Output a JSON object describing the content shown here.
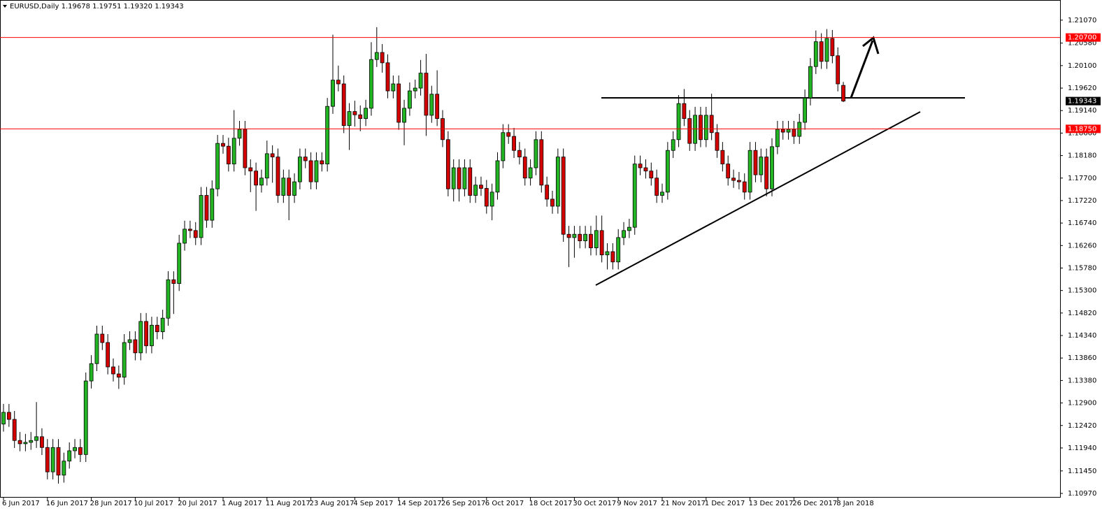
{
  "chart_data": {
    "type": "candlestick",
    "header": "EURUSD,Daily  1.19678 1.19751 1.19320 1.19343",
    "up_color": "#22b422",
    "down_color": "#d40000",
    "categories": [
      "6 Jun 2017",
      null,
      null,
      null,
      null,
      null,
      null,
      null,
      "16 Jun 2017",
      null,
      null,
      null,
      null,
      null,
      null,
      null,
      "28 Jun 2017",
      null,
      null,
      null,
      null,
      null,
      null,
      null,
      "10 Jul 2017",
      null,
      null,
      null,
      null,
      null,
      null,
      null,
      "20 Jul 2017",
      null,
      null,
      null,
      null,
      null,
      null,
      null,
      "1 Aug 2017",
      null,
      null,
      null,
      null,
      null,
      null,
      null,
      "11 Aug 2017",
      null,
      null,
      null,
      null,
      null,
      null,
      null,
      "23 Aug 2017",
      null,
      null,
      null,
      null,
      null,
      null,
      null,
      "4 Sep 2017",
      null,
      null,
      null,
      null,
      null,
      null,
      null,
      "14 Sep 2017",
      null,
      null,
      null,
      null,
      null,
      null,
      null,
      "26 Sep 2017",
      null,
      null,
      null,
      null,
      null,
      null,
      null,
      "6 Oct 2017",
      null,
      null,
      null,
      null,
      null,
      null,
      null,
      "18 Oct 2017",
      null,
      null,
      null,
      null,
      null,
      null,
      null,
      "30 Oct 2017",
      null,
      null,
      null,
      null,
      null,
      null,
      null,
      "9 Nov 2017",
      null,
      null,
      null,
      null,
      null,
      null,
      null,
      "21 Nov 2017",
      null,
      null,
      null,
      null,
      null,
      null,
      null,
      "1 Dec 2017",
      null,
      null,
      null,
      null,
      null,
      null,
      null,
      "13 Dec 2017",
      null,
      null,
      null,
      null,
      null,
      null,
      null,
      "26 Dec 2017",
      null,
      null,
      null,
      null,
      null,
      null,
      null,
      "8 Jan 2018",
      null
    ],
    "open": [
      1.1245,
      1.127,
      1.1255,
      1.121,
      1.1203,
      1.1206,
      1.121,
      1.1218,
      1.1195,
      1.1143,
      1.1195,
      1.1136,
      1.1166,
      1.1188,
      1.1195,
      1.118,
      1.1337,
      1.1374,
      1.1437,
      1.1419,
      1.1367,
      1.1352,
      1.1345,
      1.1419,
      1.1425,
      1.1397,
      1.1464,
      1.1412,
      1.1456,
      1.1442,
      1.1471,
      1.1553,
      1.1545,
      1.1631,
      1.1661,
      1.1658,
      1.1643,
      1.1733,
      1.168,
      1.1747,
      1.1844,
      1.1838,
      1.18,
      1.1855,
      1.1874,
      1.1792,
      1.1785,
      1.1755,
      1.177,
      1.1822,
      1.1815,
      1.1733,
      1.177,
      1.1733,
      1.1762,
      1.1815,
      1.1807,
      1.1762,
      1.1807,
      1.18,
      1.1923,
      1.1979,
      1.1971,
      1.1882,
      1.1912,
      1.1905,
      1.1897,
      1.1919,
      1.2023,
      1.2038,
      1.2016,
      1.1956,
      1.1971,
      1.1889,
      1.1919,
      1.1956,
      1.1962,
      1.1994,
      1.1904,
      1.1949,
      1.1897,
      1.1852,
      1.1747,
      1.1792,
      1.1747,
      1.1792,
      1.1733,
      1.1755,
      1.1748,
      1.171,
      1.174,
      1.1807,
      1.1867,
      1.1859,
      1.1829,
      1.1815,
      1.177,
      1.1792,
      1.1852,
      1.1755,
      1.1725,
      1.171,
      1.1815,
      1.165,
      1.1643,
      1.165,
      1.1636,
      1.165,
      1.1621,
      1.1658,
      1.1606,
      1.1613,
      1.1591,
      1.1643,
      1.1658,
      1.1665,
      1.18,
      1.1792,
      1.1785,
      1.177,
      1.1733,
      1.174,
      1.1829,
      1.1852,
      1.1929,
      1.1897,
      1.1844,
      1.1904,
      1.1852,
      1.1904,
      1.1867,
      1.1829,
      1.18,
      1.177,
      1.1765,
      1.1762,
      1.174,
      1.1829,
      1.1777,
      1.1815,
      1.1747,
      1.1837,
      1.1874,
      1.1868,
      1.1874,
      1.1859,
      1.1889,
      1.1941,
      1.2008,
      1.2061,
      1.2019,
      1.2068,
      1.2031,
      1.19678
    ],
    "high": [
      1.1288,
      1.1288,
      1.1273,
      1.1228,
      1.1224,
      1.1228,
      1.1292,
      1.1236,
      1.1213,
      1.1213,
      1.1213,
      1.1184,
      1.1206,
      1.1213,
      1.1213,
      1.1355,
      1.1392,
      1.1455,
      1.1455,
      1.1437,
      1.1385,
      1.137,
      1.1437,
      1.1443,
      1.1443,
      1.1482,
      1.1482,
      1.1474,
      1.1474,
      1.1489,
      1.1571,
      1.1571,
      1.1649,
      1.1679,
      1.1679,
      1.1676,
      1.1751,
      1.1751,
      1.1765,
      1.1862,
      1.1862,
      1.1856,
      1.1915,
      1.1892,
      1.1892,
      1.181,
      1.1803,
      1.1788,
      1.185,
      1.184,
      1.1833,
      1.1788,
      1.1788,
      1.178,
      1.1833,
      1.1833,
      1.1825,
      1.1825,
      1.1825,
      1.1941,
      1.2076,
      1.201,
      1.1989,
      1.193,
      1.1935,
      1.1925,
      1.1937,
      1.206,
      1.2092,
      1.2056,
      1.2034,
      1.1989,
      1.1989,
      1.1937,
      1.1974,
      1.198,
      1.2022,
      1.2035,
      1.1967,
      1.2,
      1.1915,
      1.187,
      1.181,
      1.181,
      1.181,
      1.181,
      1.1773,
      1.1773,
      1.1766,
      1.1758,
      1.1825,
      1.1885,
      1.1885,
      1.1877,
      1.1847,
      1.1833,
      1.181,
      1.187,
      1.187,
      1.1773,
      1.1743,
      1.1833,
      1.1833,
      1.1668,
      1.1668,
      1.1668,
      1.1668,
      1.1668,
      1.169,
      1.169,
      1.1631,
      1.1631,
      1.1661,
      1.1676,
      1.1683,
      1.1818,
      1.1818,
      1.181,
      1.1803,
      1.1788,
      1.1758,
      1.1847,
      1.187,
      1.1947,
      1.196,
      1.1915,
      1.1922,
      1.1922,
      1.1922,
      1.195,
      1.1885,
      1.1847,
      1.1818,
      1.1788,
      1.1783,
      1.178,
      1.1847,
      1.1847,
      1.1833,
      1.1833,
      1.1855,
      1.1892,
      1.1892,
      1.1892,
      1.1892,
      1.1907,
      1.1959,
      1.2026,
      1.2085,
      1.2079,
      1.2088,
      1.2086,
      1.2049,
      1.19751
    ],
    "low": [
      1.1229,
      1.1239,
      1.1194,
      1.1187,
      1.1187,
      1.119,
      1.1194,
      1.1179,
      1.1127,
      1.1127,
      1.1118,
      1.112,
      1.115,
      1.1172,
      1.1164,
      1.1164,
      1.1321,
      1.1358,
      1.1403,
      1.1351,
      1.1336,
      1.132,
      1.1329,
      1.1403,
      1.1381,
      1.1381,
      1.1396,
      1.1396,
      1.1426,
      1.1426,
      1.1455,
      1.148,
      1.1529,
      1.1615,
      1.1642,
      1.1627,
      1.1627,
      1.1664,
      1.1664,
      1.1731,
      1.1822,
      1.1784,
      1.1784,
      1.1839,
      1.1776,
      1.174,
      1.17,
      1.1739,
      1.1754,
      1.176,
      1.1717,
      1.1717,
      1.168,
      1.1717,
      1.1746,
      1.1791,
      1.1746,
      1.1746,
      1.1784,
      1.1784,
      1.1907,
      1.1955,
      1.1866,
      1.183,
      1.188,
      1.187,
      1.1881,
      1.1903,
      1.2007,
      1.1995,
      1.194,
      1.194,
      1.1873,
      1.184,
      1.1903,
      1.194,
      1.1946,
      1.186,
      1.1888,
      1.1881,
      1.1836,
      1.1731,
      1.172,
      1.172,
      1.1731,
      1.1717,
      1.1717,
      1.1732,
      1.1694,
      1.168,
      1.1724,
      1.1791,
      1.1843,
      1.1813,
      1.1799,
      1.1754,
      1.1754,
      1.1776,
      1.1739,
      1.1709,
      1.1694,
      1.1694,
      1.1634,
      1.158,
      1.16,
      1.162,
      1.162,
      1.1605,
      1.1605,
      1.159,
      1.1575,
      1.1575,
      1.1575,
      1.1627,
      1.1642,
      1.1649,
      1.1776,
      1.1769,
      1.1754,
      1.1717,
      1.1717,
      1.1724,
      1.1813,
      1.1836,
      1.1881,
      1.1828,
      1.1828,
      1.1836,
      1.1836,
      1.1851,
      1.1813,
      1.1784,
      1.1754,
      1.1749,
      1.1746,
      1.1724,
      1.1724,
      1.1761,
      1.1761,
      1.1731,
      1.1731,
      1.1821,
      1.1852,
      1.1852,
      1.1843,
      1.1843,
      1.1873,
      1.1925,
      1.1992,
      1.2003,
      1.2003,
      1.2015,
      1.1955,
      1.1932
    ],
    "close": [
      1.127,
      1.1255,
      1.121,
      1.1203,
      1.1206,
      1.121,
      1.1218,
      1.1195,
      1.1143,
      1.1195,
      1.1136,
      1.1166,
      1.1188,
      1.1195,
      1.118,
      1.1337,
      1.1374,
      1.1437,
      1.1419,
      1.1367,
      1.1352,
      1.1345,
      1.1419,
      1.1425,
      1.1397,
      1.1464,
      1.1412,
      1.1456,
      1.1442,
      1.1471,
      1.1553,
      1.1545,
      1.1631,
      1.1661,
      1.1658,
      1.1643,
      1.1733,
      1.168,
      1.1747,
      1.1844,
      1.1838,
      1.18,
      1.1855,
      1.1874,
      1.1792,
      1.1785,
      1.1755,
      1.177,
      1.1822,
      1.1815,
      1.1733,
      1.177,
      1.1733,
      1.1762,
      1.1815,
      1.1807,
      1.1762,
      1.1807,
      1.18,
      1.1923,
      1.1979,
      1.1971,
      1.1882,
      1.1912,
      1.1905,
      1.1897,
      1.1919,
      1.2023,
      1.2038,
      1.2016,
      1.1956,
      1.1971,
      1.1889,
      1.1919,
      1.1956,
      1.1962,
      1.1994,
      1.1904,
      1.1949,
      1.1897,
      1.1852,
      1.1747,
      1.1792,
      1.1747,
      1.1792,
      1.1733,
      1.1755,
      1.1748,
      1.171,
      1.174,
      1.1807,
      1.1867,
      1.1859,
      1.1829,
      1.1815,
      1.177,
      1.1792,
      1.1852,
      1.1755,
      1.1725,
      1.171,
      1.1815,
      1.165,
      1.1643,
      1.165,
      1.1636,
      1.165,
      1.1621,
      1.1658,
      1.1606,
      1.1613,
      1.1591,
      1.1643,
      1.1658,
      1.1665,
      1.18,
      1.1792,
      1.1785,
      1.177,
      1.1733,
      1.174,
      1.1829,
      1.1852,
      1.1929,
      1.1897,
      1.1844,
      1.1904,
      1.1852,
      1.1904,
      1.1867,
      1.1829,
      1.18,
      1.177,
      1.1765,
      1.1762,
      1.174,
      1.1829,
      1.1777,
      1.1815,
      1.1747,
      1.1837,
      1.1874,
      1.1868,
      1.1874,
      1.1859,
      1.1889,
      1.1941,
      1.2008,
      1.2061,
      1.2019,
      1.2068,
      1.2031,
      1.1971,
      1.19343
    ],
    "ylim": [
      1.1088,
      1.215
    ],
    "yticks": [
      {
        "value": 1.2107,
        "label": "1.21070"
      },
      {
        "value": 1.2058,
        "label": "1.20580"
      },
      {
        "value": 1.201,
        "label": "1.20100"
      },
      {
        "value": 1.1962,
        "label": "1.19620"
      },
      {
        "value": 1.1914,
        "label": "1.19140"
      },
      {
        "value": 1.1866,
        "label": "1.18660"
      },
      {
        "value": 1.1818,
        "label": "1.18180"
      },
      {
        "value": 1.177,
        "label": "1.17700"
      },
      {
        "value": 1.1722,
        "label": "1.17220"
      },
      {
        "value": 1.1674,
        "label": "1.16740"
      },
      {
        "value": 1.1626,
        "label": "1.16260"
      },
      {
        "value": 1.1578,
        "label": "1.15780"
      },
      {
        "value": 1.153,
        "label": "1.15300"
      },
      {
        "value": 1.1482,
        "label": "1.14820"
      },
      {
        "value": 1.1434,
        "label": "1.14340"
      },
      {
        "value": 1.1386,
        "label": "1.13860"
      },
      {
        "value": 1.1338,
        "label": "1.13380"
      },
      {
        "value": 1.129,
        "label": "1.12900"
      },
      {
        "value": 1.1242,
        "label": "1.12420"
      },
      {
        "value": 1.1194,
        "label": "1.11940"
      },
      {
        "value": 1.1145,
        "label": "1.11450"
      },
      {
        "value": 1.1097,
        "label": "1.10970"
      }
    ],
    "levels": [
      {
        "value": 1.207,
        "label": "1.20700",
        "color": "#ff0000"
      },
      {
        "value": 1.1875,
        "label": "1.18750",
        "color": "#ff0000"
      },
      {
        "value": 1.19343,
        "label": "1.19343",
        "color": "#000000"
      }
    ]
  }
}
